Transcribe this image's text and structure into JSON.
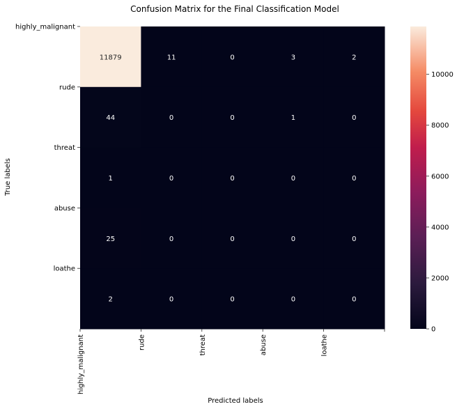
{
  "chart_data": {
    "type": "heatmap",
    "title": "Confusion Matrix for the Final Classification Model",
    "xlabel": "Predicted labels",
    "ylabel": "True labels",
    "x_tick_labels": [
      "highly_malignant",
      "rude",
      "threat",
      "abuse",
      "loathe"
    ],
    "y_tick_labels": [
      "highly_malignant",
      "rude",
      "threat",
      "abuse",
      "loathe"
    ],
    "matrix": [
      [
        11879,
        11,
        0,
        3,
        2
      ],
      [
        44,
        0,
        0,
        1,
        0
      ],
      [
        1,
        0,
        0,
        0,
        0
      ],
      [
        25,
        0,
        0,
        0,
        0
      ],
      [
        2,
        0,
        0,
        0,
        0
      ]
    ],
    "colorbar": {
      "vmin": 0,
      "vmax": 11879,
      "ticks": [
        0,
        2000,
        4000,
        6000,
        8000,
        10000
      ],
      "colormap": "rocket"
    },
    "grid": false
  }
}
